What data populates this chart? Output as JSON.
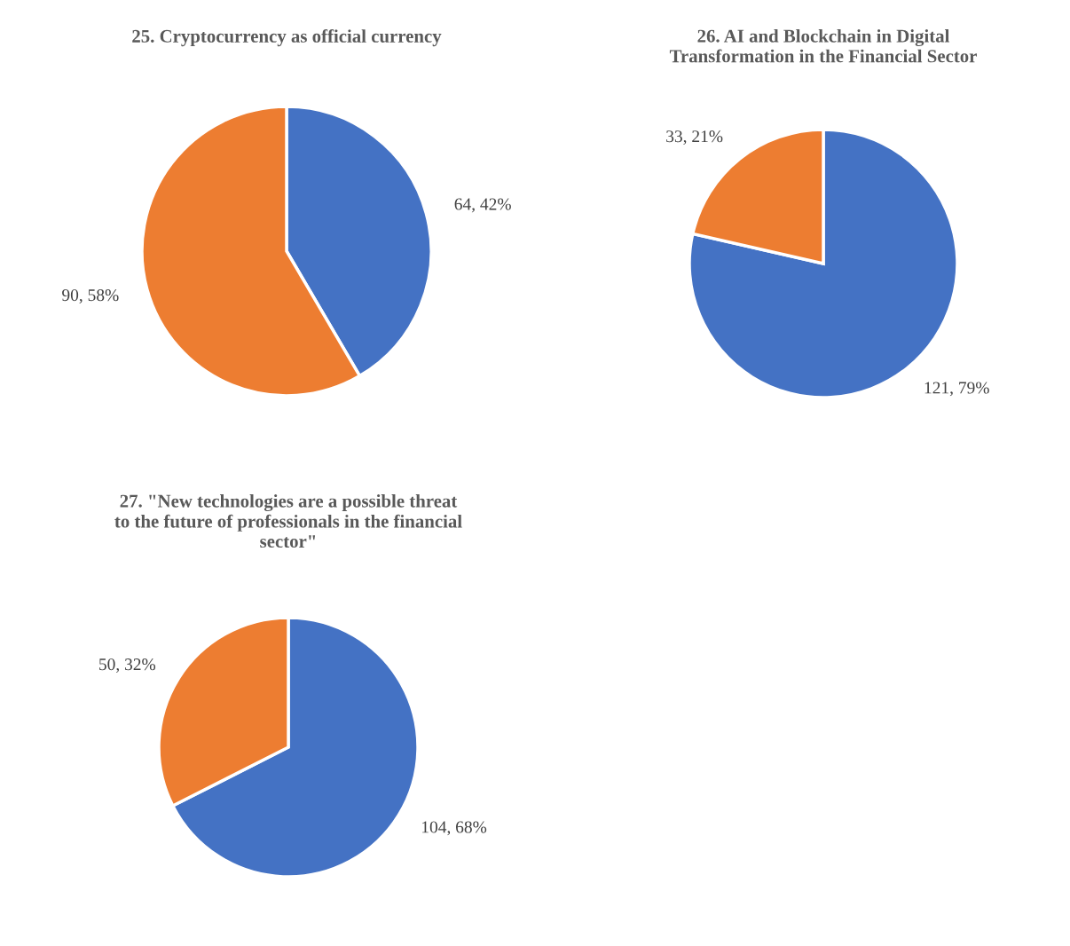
{
  "chart_data": [
    {
      "type": "pie",
      "title": "25. Cryptocurrency as official currency",
      "categories": [
        null,
        null
      ],
      "values": [
        64,
        90
      ],
      "colors": [
        "#4472c4",
        "#ed7d31"
      ],
      "value_labels": [
        "64, 42%",
        "90, 58%"
      ]
    },
    {
      "type": "pie",
      "title": "26. AI and Blockchain in Digital\nTransformation in the Financial Sector",
      "categories": [
        null,
        null
      ],
      "values": [
        121,
        33
      ],
      "colors": [
        "#4472c4",
        "#ed7d31"
      ],
      "value_labels": [
        "121, 79%",
        "33, 21%"
      ]
    },
    {
      "type": "pie",
      "title": "27. \"New technologies are a possible threat\nto the future of professionals in the financial\nsector\"",
      "categories": [
        null,
        null
      ],
      "values": [
        104,
        50
      ],
      "colors": [
        "#4472c4",
        "#ed7d31"
      ],
      "value_labels": [
        "104, 68%",
        "50, 32%"
      ]
    }
  ]
}
